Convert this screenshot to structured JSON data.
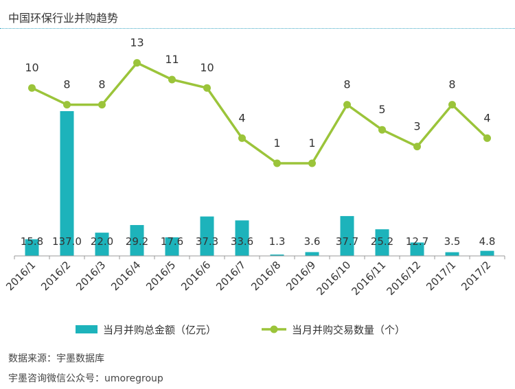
{
  "title": "中国环保行业并购趋势",
  "footer": {
    "source": "数据来源：宇墨数据库",
    "account": "宇墨咨询微信公众号：umoregroup"
  },
  "colors": {
    "bar": "#1db3bb",
    "line": "#9bc43a",
    "text": "#333333"
  },
  "chart_data": {
    "type": "bar+line",
    "title": "中国环保行业并购趋势",
    "categories": [
      "2016/1",
      "2016/2",
      "2016/3",
      "2016/4",
      "2016/5",
      "2016/6",
      "2016/7",
      "2016/8",
      "2016/9",
      "2016/10",
      "2016/11",
      "2016/12",
      "2017/1",
      "2017/2"
    ],
    "series": [
      {
        "name": "当月并购总金额（亿元）",
        "type": "bar",
        "values": [
          15.8,
          137.0,
          22.0,
          29.2,
          17.6,
          37.3,
          33.6,
          1.3,
          3.6,
          37.7,
          25.2,
          12.7,
          3.5,
          4.8
        ],
        "labels": [
          "15.8",
          "137.0",
          "22.0",
          "29.2",
          "17.6",
          "37.3",
          "33.6",
          "1.3",
          "3.6",
          "37.7",
          "25.2",
          "12.7",
          "3.5",
          "4.8"
        ]
      },
      {
        "name": "当月并购交易数量（个）",
        "type": "line",
        "values": [
          10,
          8,
          8,
          13,
          11,
          10,
          4,
          1,
          1,
          8,
          5,
          3,
          8,
          4
        ],
        "labels": [
          "10",
          "8",
          "8",
          "13",
          "11",
          "10",
          "4",
          "1",
          "1",
          "8",
          "5",
          "3",
          "8",
          "4"
        ]
      }
    ],
    "legend_position": "bottom",
    "grid": false
  }
}
